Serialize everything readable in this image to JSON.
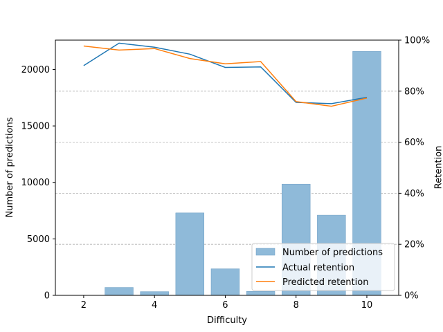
{
  "chart_data": {
    "type": "bar+line",
    "x": [
      2,
      3,
      4,
      5,
      6,
      7,
      8,
      9,
      10
    ],
    "xlabel": "Difficulty",
    "xticks": [
      2,
      4,
      6,
      8,
      10
    ],
    "xlim": [
      1.2,
      10.9
    ],
    "ylabel_left": "Number of predictions",
    "yticks_left": [
      0,
      5000,
      10000,
      15000,
      20000
    ],
    "ylim_left": [
      0,
      22600
    ],
    "ylabel_right": "Retention",
    "yticks_right": [
      "0%",
      "20%",
      "40%",
      "60%",
      "80%",
      "100%"
    ],
    "ylim_right": [
      0,
      1
    ],
    "grid": "horizontal dashed, right axis",
    "legend_position": "lower-right",
    "bars": {
      "name": "Number of predictions",
      "color": "#8fbad9",
      "values": [
        0,
        700,
        330,
        7300,
        2350,
        350,
        9850,
        7100,
        21600
      ]
    },
    "series": [
      {
        "name": "Actual retention",
        "color": "#1f77b4",
        "values": [
          0.9,
          0.988,
          0.972,
          0.945,
          0.893,
          0.895,
          0.756,
          0.751,
          0.776
        ]
      },
      {
        "name": "Predicted retention",
        "color": "#ff7f0e",
        "values": [
          0.977,
          0.961,
          0.967,
          0.928,
          0.907,
          0.916,
          0.759,
          0.741,
          0.773
        ]
      }
    ]
  }
}
